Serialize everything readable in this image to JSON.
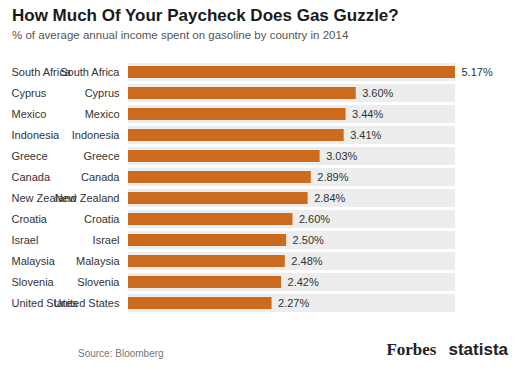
{
  "chart_data": {
    "type": "bar",
    "title": "How Much Of Your Paycheck Does Gas Guzzle?",
    "subtitle": "% of average annual income spent on gasoline by country in 2014",
    "source": "Source: Bloomberg",
    "credits": [
      "Forbes",
      "statista"
    ],
    "orientation": "horizontal",
    "categories": [
      "South Africa",
      "Cyprus",
      "Mexico",
      "Indonesia",
      "Greece",
      "Canada",
      "New Zealand",
      "Croatia",
      "Israel",
      "Malaysia",
      "Slovenia",
      "United States"
    ],
    "values": [
      5.17,
      3.6,
      3.44,
      3.41,
      3.03,
      2.89,
      2.84,
      2.6,
      2.5,
      2.48,
      2.42,
      2.27
    ],
    "value_labels": [
      "5.17%",
      "3.60%",
      "3.44%",
      "3.41%",
      "3.03%",
      "2.89%",
      "2.84%",
      "2.60%",
      "2.50%",
      "2.48%",
      "2.42%",
      "2.27%"
    ],
    "data_labels": true,
    "tick_labels": "y",
    "color": "#cc6a1e"
  }
}
